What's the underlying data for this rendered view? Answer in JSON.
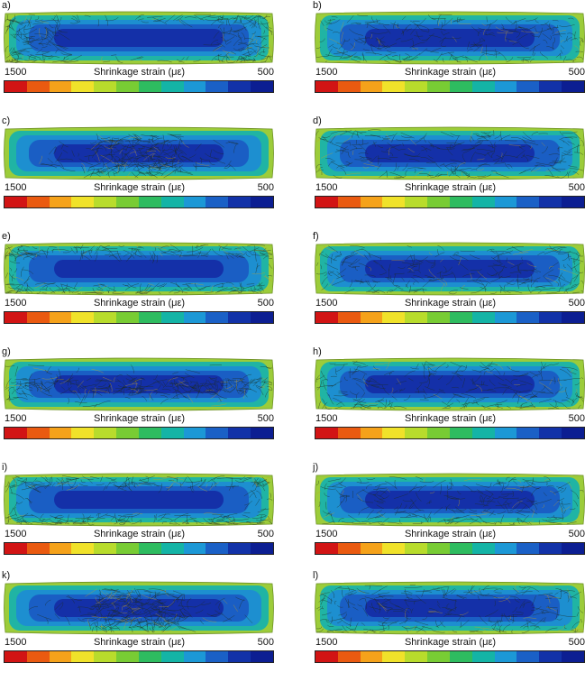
{
  "panels": [
    {
      "label": "a)",
      "fiber_pattern": "ends"
    },
    {
      "label": "b)",
      "fiber_pattern": "uniform"
    },
    {
      "label": "c)",
      "fiber_pattern": "center"
    },
    {
      "label": "d)",
      "fiber_pattern": "uniform"
    },
    {
      "label": "e)",
      "fiber_pattern": "edges"
    },
    {
      "label": "f)",
      "fiber_pattern": "uniform"
    },
    {
      "label": "g)",
      "fiber_pattern": "midline"
    },
    {
      "label": "h)",
      "fiber_pattern": "uniform"
    },
    {
      "label": "i)",
      "fiber_pattern": "edges"
    },
    {
      "label": "j)",
      "fiber_pattern": "uniform"
    },
    {
      "label": "k)",
      "fiber_pattern": "center"
    },
    {
      "label": "l)",
      "fiber_pattern": "uniform"
    }
  ],
  "colorbar": {
    "title": "Shrinkage strain (με)",
    "max_label": "1500",
    "min_label": "500",
    "colors": [
      "#d21414",
      "#ea5a10",
      "#f5a21a",
      "#f0e22a",
      "#b8dc2c",
      "#78cc34",
      "#2ebc60",
      "#14b4a6",
      "#1c98d6",
      "#1a60c6",
      "#1232a8",
      "#0c1e92"
    ]
  },
  "field_colors": {
    "rim": "#9ccc3a",
    "band1": "#20b4a4",
    "band2": "#1d8fd0",
    "band3": "#1a5ec4",
    "core": "#1430a8",
    "fiber": "#1c2a1c"
  }
}
